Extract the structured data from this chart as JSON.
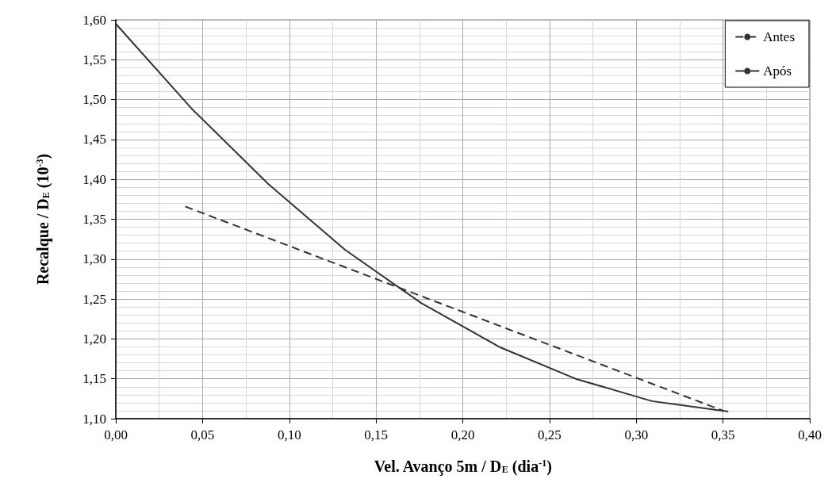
{
  "chart_data": {
    "type": "line",
    "xlabel": "Vel. Avanço 5m / D$_{E}$ (dia$^{-1}$)",
    "ylabel": "Recalque / D$_{E}$ (10$^{-3}$)",
    "xlim": [
      0,
      0.4
    ],
    "xticks": [
      {
        "value": 0,
        "label": "0,00"
      },
      {
        "value": 0.05,
        "label": "0,05"
      },
      {
        "value": 0.1,
        "label": "0,10"
      },
      {
        "value": 0.15,
        "label": "0,15"
      },
      {
        "value": 0.2,
        "label": "0,20"
      },
      {
        "value": 0.25,
        "label": "0,25"
      },
      {
        "value": 0.3,
        "label": "0,30"
      },
      {
        "value": 0.35,
        "label": "0,35"
      },
      {
        "value": 0.4,
        "label": "0,40"
      }
    ],
    "ylim": [
      1.1,
      1.6
    ],
    "yticks": [
      {
        "value": 1.1,
        "label": "1,10"
      },
      {
        "value": 1.15,
        "label": "1,15"
      },
      {
        "value": 1.2,
        "label": "1,20"
      },
      {
        "value": 1.25,
        "label": "1,25"
      },
      {
        "value": 1.3,
        "label": "1,30"
      },
      {
        "value": 1.35,
        "label": "1,35"
      },
      {
        "value": 1.4,
        "label": "1,40"
      },
      {
        "value": 1.45,
        "label": "1,45"
      },
      {
        "value": 1.5,
        "label": "1,50"
      },
      {
        "value": 1.55,
        "label": "1,55"
      },
      {
        "value": 1.6,
        "label": "1,60"
      }
    ],
    "grid": true,
    "legend": "top right",
    "marker": "none",
    "series": [
      {
        "name": "Antes",
        "color": "#333333",
        "line_style": "dashed",
        "x": [
          0.04,
          0.35
        ],
        "values": [
          1.366,
          1.11
        ]
      },
      {
        "name": "Após",
        "color": "#333333",
        "line_style": "solid",
        "x": [
          0,
          0.044,
          0.088,
          0.132,
          0.176,
          0.221,
          0.265,
          0.309,
          0.353
        ],
        "values": [
          1.595,
          1.488,
          1.394,
          1.312,
          1.245,
          1.19,
          1.15,
          1.122,
          1.109
        ]
      }
    ]
  }
}
